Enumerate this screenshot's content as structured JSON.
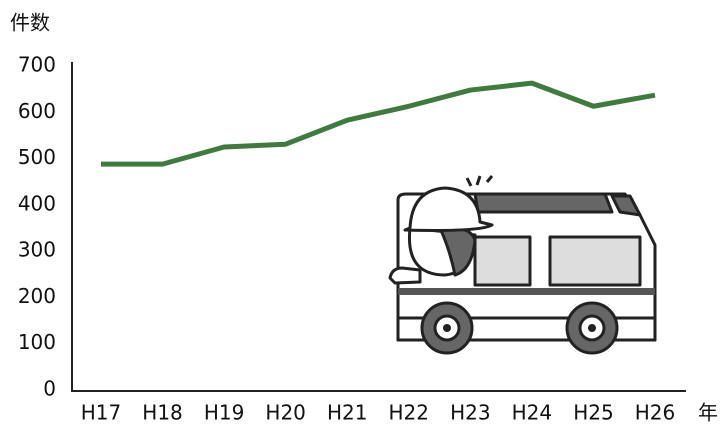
{
  "chart_data": {
    "type": "line",
    "y_label": "件数",
    "x_label": "年",
    "categories": [
      "H17",
      "H18",
      "H19",
      "H20",
      "H21",
      "H22",
      "H23",
      "H24",
      "H25",
      "H26"
    ],
    "series": [
      {
        "name": "件数",
        "color": "#3f7a3f",
        "values": [
          488,
          488,
          525,
          531,
          583,
          613,
          648,
          663,
          613,
          637
        ]
      }
    ],
    "ylim": [
      0,
      700
    ],
    "yticks": [
      0,
      100,
      200,
      300,
      400,
      500,
      600,
      700
    ],
    "grid": false
  }
}
